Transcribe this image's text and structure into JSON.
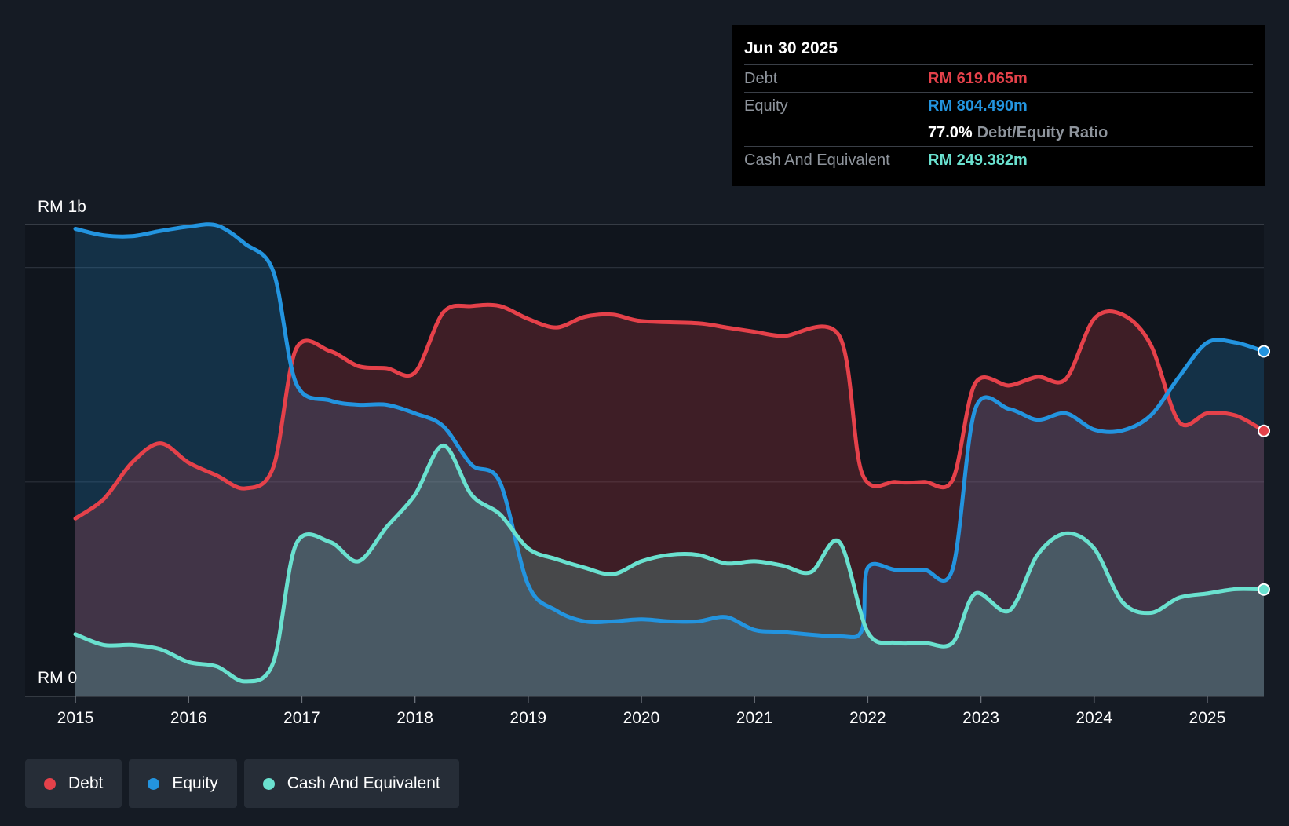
{
  "chart_data": {
    "type": "area",
    "currency_prefix": "RM",
    "ylim_label_top": "RM 1b",
    "ylim_label_bottom": "RM 0",
    "ylim": [
      0,
      1100
    ],
    "xlim": [
      2015.0,
      2025.5
    ],
    "x_ticks": [
      "2015",
      "2016",
      "2017",
      "2018",
      "2019",
      "2020",
      "2021",
      "2022",
      "2023",
      "2024",
      "2025"
    ],
    "series": [
      {
        "name": "Debt",
        "color": "#e5414a",
        "points": [
          [
            2015.0,
            415
          ],
          [
            2015.25,
            460
          ],
          [
            2015.5,
            545
          ],
          [
            2015.75,
            590
          ],
          [
            2016.0,
            545
          ],
          [
            2016.25,
            515
          ],
          [
            2016.5,
            485
          ],
          [
            2016.75,
            535
          ],
          [
            2016.95,
            810
          ],
          [
            2017.25,
            805
          ],
          [
            2017.5,
            770
          ],
          [
            2017.75,
            765
          ],
          [
            2018.0,
            755
          ],
          [
            2018.25,
            895
          ],
          [
            2018.5,
            910
          ],
          [
            2018.75,
            910
          ],
          [
            2019.0,
            880
          ],
          [
            2019.25,
            860
          ],
          [
            2019.5,
            885
          ],
          [
            2019.75,
            890
          ],
          [
            2020.0,
            875
          ],
          [
            2020.5,
            870
          ],
          [
            2020.75,
            860
          ],
          [
            2021.0,
            850
          ],
          [
            2021.25,
            840
          ],
          [
            2021.75,
            840
          ],
          [
            2021.95,
            520
          ],
          [
            2022.25,
            500
          ],
          [
            2022.5,
            500
          ],
          [
            2022.75,
            505
          ],
          [
            2022.95,
            730
          ],
          [
            2023.25,
            725
          ],
          [
            2023.5,
            745
          ],
          [
            2023.75,
            740
          ],
          [
            2024.0,
            880
          ],
          [
            2024.25,
            890
          ],
          [
            2024.5,
            820
          ],
          [
            2024.75,
            640
          ],
          [
            2025.0,
            660
          ],
          [
            2025.25,
            655
          ],
          [
            2025.5,
            619.065
          ]
        ]
      },
      {
        "name": "Equity",
        "color": "#2394df",
        "points": [
          [
            2015.0,
            1090
          ],
          [
            2015.25,
            1075
          ],
          [
            2015.5,
            1073
          ],
          [
            2015.75,
            1085
          ],
          [
            2016.0,
            1095
          ],
          [
            2016.25,
            1098
          ],
          [
            2016.5,
            1055
          ],
          [
            2016.75,
            990
          ],
          [
            2016.95,
            730
          ],
          [
            2017.25,
            690
          ],
          [
            2017.5,
            680
          ],
          [
            2017.75,
            680
          ],
          [
            2018.0,
            660
          ],
          [
            2018.25,
            630
          ],
          [
            2018.5,
            540
          ],
          [
            2018.75,
            500
          ],
          [
            2019.0,
            260
          ],
          [
            2019.25,
            200
          ],
          [
            2019.5,
            175
          ],
          [
            2019.75,
            175
          ],
          [
            2020.0,
            180
          ],
          [
            2020.25,
            175
          ],
          [
            2020.5,
            175
          ],
          [
            2020.75,
            185
          ],
          [
            2021.0,
            155
          ],
          [
            2021.25,
            150
          ],
          [
            2021.75,
            140
          ],
          [
            2021.95,
            155
          ],
          [
            2022.0,
            300
          ],
          [
            2022.25,
            295
          ],
          [
            2022.5,
            295
          ],
          [
            2022.75,
            297
          ],
          [
            2022.95,
            670
          ],
          [
            2023.25,
            670
          ],
          [
            2023.5,
            645
          ],
          [
            2023.75,
            660
          ],
          [
            2024.0,
            622
          ],
          [
            2024.25,
            620
          ],
          [
            2024.5,
            655
          ],
          [
            2024.75,
            745
          ],
          [
            2025.0,
            825
          ],
          [
            2025.25,
            825
          ],
          [
            2025.5,
            804.49
          ]
        ]
      },
      {
        "name": "Cash And Equivalent",
        "color": "#6ae1cf",
        "points": [
          [
            2015.0,
            145
          ],
          [
            2015.25,
            120
          ],
          [
            2015.5,
            120
          ],
          [
            2015.75,
            110
          ],
          [
            2016.0,
            80
          ],
          [
            2016.25,
            70
          ],
          [
            2016.5,
            35
          ],
          [
            2016.75,
            80
          ],
          [
            2016.95,
            355
          ],
          [
            2017.25,
            360
          ],
          [
            2017.5,
            315
          ],
          [
            2017.75,
            395
          ],
          [
            2018.0,
            470
          ],
          [
            2018.25,
            585
          ],
          [
            2018.5,
            470
          ],
          [
            2018.75,
            425
          ],
          [
            2019.0,
            345
          ],
          [
            2019.25,
            320
          ],
          [
            2019.5,
            300
          ],
          [
            2019.75,
            285
          ],
          [
            2020.0,
            315
          ],
          [
            2020.25,
            330
          ],
          [
            2020.5,
            330
          ],
          [
            2020.75,
            310
          ],
          [
            2021.0,
            315
          ],
          [
            2021.25,
            305
          ],
          [
            2021.5,
            290
          ],
          [
            2021.75,
            360
          ],
          [
            2022.0,
            150
          ],
          [
            2022.25,
            125
          ],
          [
            2022.5,
            125
          ],
          [
            2022.75,
            125
          ],
          [
            2022.95,
            240
          ],
          [
            2023.25,
            200
          ],
          [
            2023.5,
            330
          ],
          [
            2023.75,
            380
          ],
          [
            2024.0,
            345
          ],
          [
            2024.25,
            220
          ],
          [
            2024.5,
            195
          ],
          [
            2024.75,
            230
          ],
          [
            2025.0,
            240
          ],
          [
            2025.25,
            250
          ],
          [
            2025.5,
            249.382
          ]
        ]
      }
    ]
  },
  "tooltip": {
    "date": "Jun 30 2025",
    "debt_label": "Debt",
    "debt_value": "RM 619.065m",
    "equity_label": "Equity",
    "equity_value": "RM 804.490m",
    "ratio_value": "77.0%",
    "ratio_label": "Debt/Equity Ratio",
    "cash_label": "Cash And Equivalent",
    "cash_value": "RM 249.382m"
  },
  "legend": {
    "debt": "Debt",
    "equity": "Equity",
    "cash": "Cash And Equivalent"
  },
  "colors": {
    "debt": "#e5414a",
    "equity": "#2394df",
    "cash": "#6ae1cf",
    "background": "#151b24"
  }
}
